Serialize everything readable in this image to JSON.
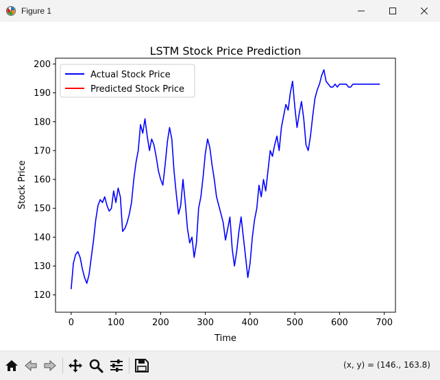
{
  "window": {
    "title": "Figure 1",
    "icons": {
      "app": "matplotlib-figure-icon",
      "minimize": "minimize-icon",
      "maximize": "maximize-icon",
      "close": "close-icon"
    }
  },
  "toolbar": {
    "buttons": [
      {
        "name": "home-icon",
        "action": "Reset original view"
      },
      {
        "name": "back-arrow-icon",
        "action": "Back to previous view"
      },
      {
        "name": "forward-arrow-icon",
        "action": "Forward to next view"
      },
      {
        "name": "pan-move-icon",
        "action": "Pan axes"
      },
      {
        "name": "zoom-magnifier-icon",
        "action": "Zoom to rectangle"
      },
      {
        "name": "subplots-configure-icon",
        "action": "Configure subplots"
      },
      {
        "name": "save-floppy-icon",
        "action": "Save the figure"
      }
    ],
    "coords": "(x, y) = (146., 163.8)"
  },
  "colors": {
    "actual": "#0000ff",
    "predicted": "#ff0000",
    "titlebar": "#f3f3f3",
    "toolbar": "#f0f0f0"
  },
  "chart_data": {
    "type": "line",
    "title": "LSTM Stock Price Prediction",
    "xlabel": "Time",
    "ylabel": "Stock Price",
    "xlim": [
      -35,
      725
    ],
    "ylim": [
      114,
      202
    ],
    "xticks": [
      0,
      100,
      200,
      300,
      400,
      500,
      600,
      700
    ],
    "yticks": [
      120,
      130,
      140,
      150,
      160,
      170,
      180,
      190,
      200
    ],
    "grid": false,
    "legend_position": "upper left",
    "series": [
      {
        "name": "Actual Stock Price",
        "color": "#0000ff",
        "x": [
          0,
          5,
          10,
          15,
          20,
          25,
          30,
          35,
          40,
          45,
          50,
          55,
          60,
          65,
          70,
          75,
          80,
          85,
          90,
          95,
          100,
          105,
          110,
          115,
          120,
          125,
          130,
          135,
          140,
          145,
          150,
          155,
          160,
          165,
          170,
          175,
          180,
          185,
          190,
          195,
          200,
          205,
          210,
          215,
          220,
          225,
          230,
          235,
          240,
          245,
          250,
          255,
          260,
          265,
          270,
          275,
          280,
          285,
          290,
          295,
          300,
          305,
          310,
          315,
          320,
          325,
          330,
          335,
          340,
          345,
          350,
          355,
          360,
          365,
          370,
          375,
          380,
          385,
          390,
          395,
          400,
          405,
          410,
          415,
          420,
          425,
          430,
          435,
          440,
          445,
          450,
          455,
          460,
          465,
          470,
          475,
          480,
          485,
          490,
          495,
          500,
          505,
          510,
          515,
          520,
          525,
          530,
          535,
          540,
          545,
          550,
          555,
          560,
          565,
          570,
          575,
          580,
          585,
          590,
          595,
          600,
          605,
          610,
          615,
          620,
          625,
          630,
          635,
          640,
          645,
          650,
          655,
          660,
          665,
          670,
          675,
          680,
          685,
          690
        ],
        "y": [
          122,
          131,
          134,
          135,
          133,
          129,
          126,
          124,
          127,
          133,
          139,
          146,
          151,
          153,
          152,
          154,
          151,
          149,
          150,
          156,
          152,
          157,
          154,
          142,
          143,
          145,
          148,
          152,
          160,
          166,
          170,
          179,
          176,
          181,
          175,
          170,
          174,
          172,
          168,
          163,
          160,
          158,
          165,
          173,
          178,
          174,
          163,
          155,
          148,
          151,
          160,
          152,
          143,
          138,
          140,
          133,
          138,
          150,
          154,
          161,
          169,
          174,
          171,
          165,
          160,
          154,
          151,
          148,
          145,
          139,
          143,
          147,
          136,
          130,
          135,
          142,
          147,
          140,
          133,
          126,
          131,
          140,
          146,
          150,
          158,
          154,
          160,
          156,
          163,
          170,
          168,
          172,
          175,
          170,
          178,
          182,
          186,
          184,
          190,
          194,
          185,
          178,
          183,
          187,
          181,
          172,
          170,
          175,
          182,
          188,
          191,
          193,
          196,
          198,
          194,
          193,
          192,
          192,
          193,
          192,
          193,
          193,
          193,
          193,
          192,
          192,
          193,
          193,
          193,
          193,
          193,
          193,
          193,
          193,
          193,
          193,
          193,
          193,
          193
        ],
        "y_note_removed": true
      },
      {
        "name": "Predicted Stock Price",
        "color": "#ff0000"
      }
    ]
  }
}
